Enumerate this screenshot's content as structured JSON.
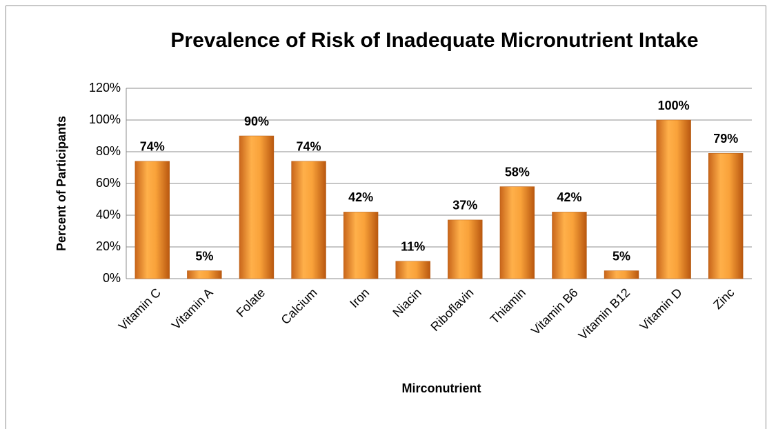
{
  "chart_data": {
    "type": "bar",
    "title": "Prevalence of Risk of Inadequate Micronutrient Intake",
    "x_label": "Mirconutrient",
    "y_label": "Percent of Participants",
    "categories": [
      "Vitamin C",
      "Vitamin A",
      "Folate",
      "Calcium",
      "Iron",
      "Niacin",
      "Riboflavin",
      "Thiamin",
      "Vitamin B6",
      "Vitamin B12",
      "Vitamin D",
      "Zinc"
    ],
    "values": [
      74,
      5,
      90,
      74,
      42,
      11,
      37,
      58,
      42,
      5,
      100,
      79
    ],
    "value_labels": [
      "74%",
      "5%",
      "90%",
      "74%",
      "42%",
      "11%",
      "37%",
      "58%",
      "42%",
      "5%",
      "100%",
      "79%"
    ],
    "color": "#f29a2e",
    "ylim": [
      0,
      120
    ],
    "yticks": [
      {
        "value": 0,
        "label": "0%"
      },
      {
        "value": 20,
        "label": "20%"
      },
      {
        "value": 40,
        "label": "40%"
      },
      {
        "value": 60,
        "label": "60%"
      },
      {
        "value": 80,
        "label": "80%"
      },
      {
        "value": 100,
        "label": "100%"
      },
      {
        "value": 120,
        "label": "120%"
      }
    ],
    "grid": true
  }
}
